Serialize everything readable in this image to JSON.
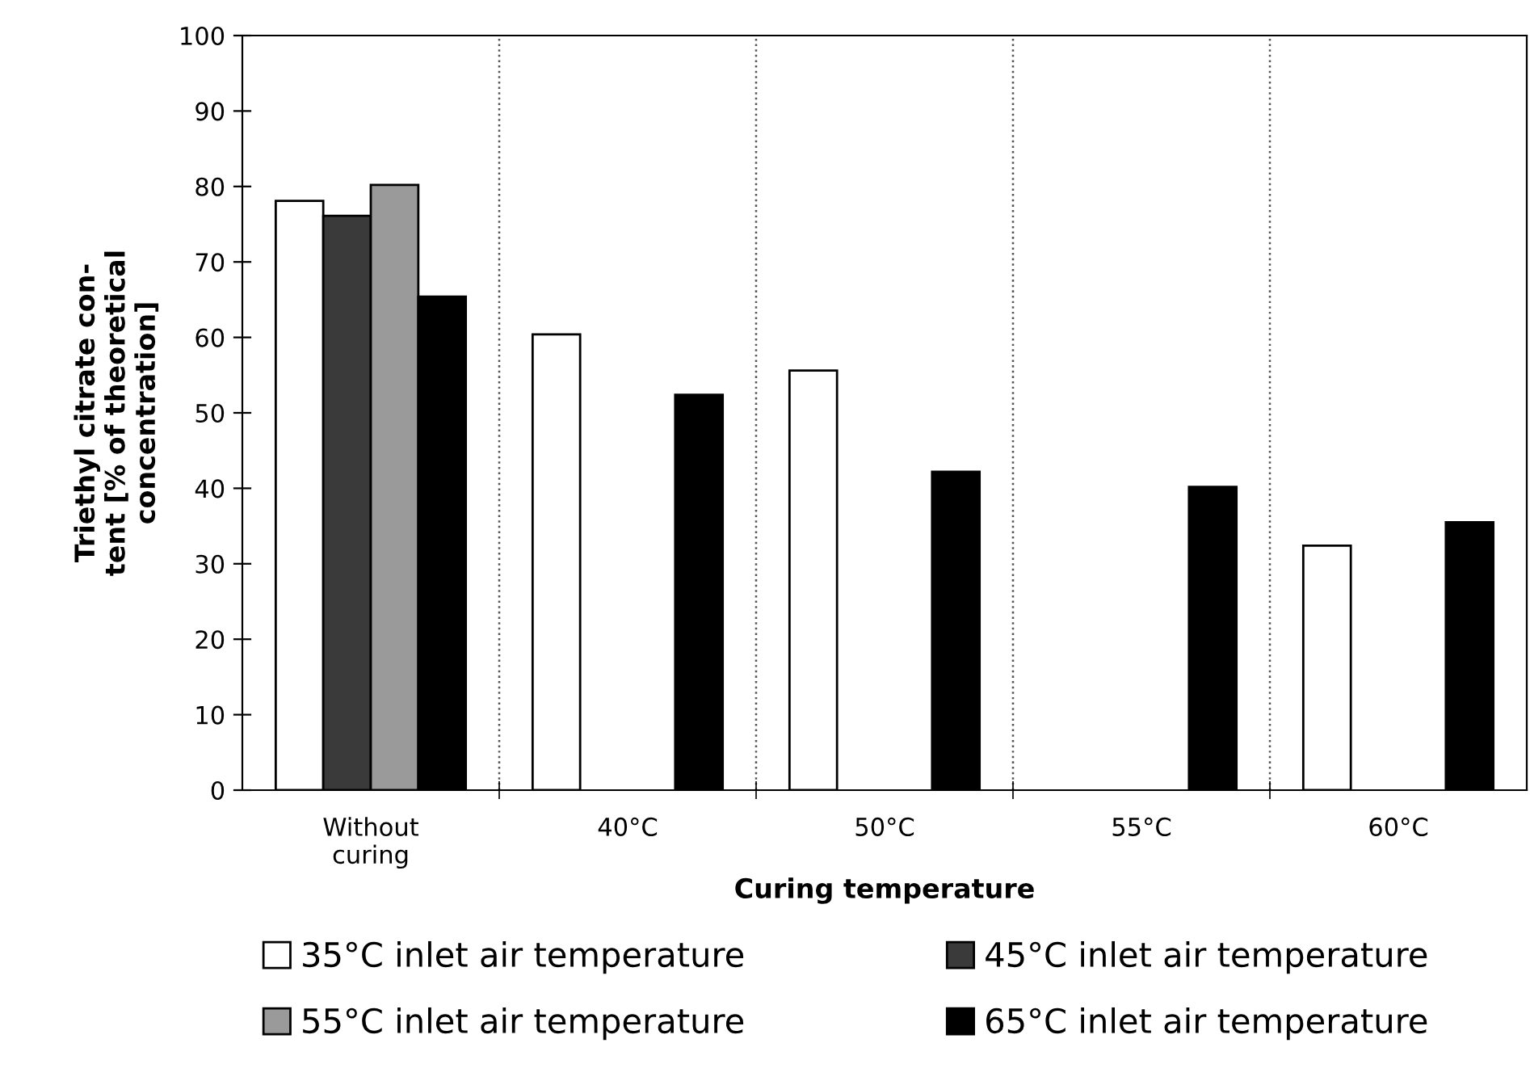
{
  "chart_data": {
    "type": "bar",
    "xlabel": "Curing temperature",
    "ylabel": "Triethyl citrate con-\ntent [% of theoretical\nconcentration]",
    "categories": [
      "Without\ncuring",
      "40°C",
      "50°C",
      "55°C",
      "60°C"
    ],
    "series": [
      {
        "name": "35°C inlet air temperature",
        "color": "#ffffff",
        "values": [
          78.1,
          60.4,
          55.6,
          null,
          32.4
        ]
      },
      {
        "name": "45°C inlet air temperature",
        "color": "#3a3a3a",
        "values": [
          76.1,
          null,
          null,
          null,
          null
        ]
      },
      {
        "name": "55°C inlet air temperature",
        "color": "#9a9a9a",
        "values": [
          80.2,
          null,
          null,
          null,
          null
        ]
      },
      {
        "name": "65°C inlet air temperature",
        "color": "#000000",
        "values": [
          65.4,
          52.4,
          42.2,
          40.2,
          35.5
        ]
      }
    ],
    "ylim": [
      0,
      100
    ],
    "yticks": [
      0,
      10,
      20,
      30,
      40,
      50,
      60,
      70,
      80,
      90,
      100
    ],
    "grid": "x",
    "legend": "bottom"
  }
}
